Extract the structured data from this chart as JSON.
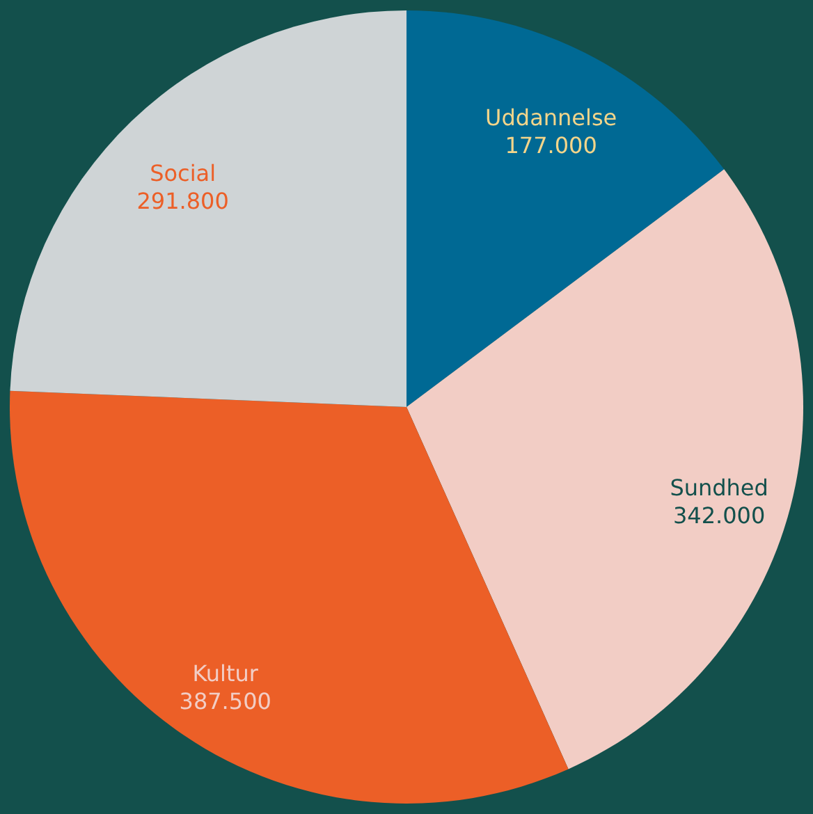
{
  "chart_data": {
    "type": "pie",
    "categories": [
      "Uddannelse",
      "Sundhed",
      "Kultur",
      "Social"
    ],
    "values": [
      177000,
      342000,
      387500,
      291800
    ],
    "value_labels": [
      "177.000",
      "342.000",
      "387.500",
      "291.800"
    ],
    "colors": [
      "#006994",
      "#f2cdc5",
      "#ec5f27",
      "#cfd4d6"
    ]
  }
}
